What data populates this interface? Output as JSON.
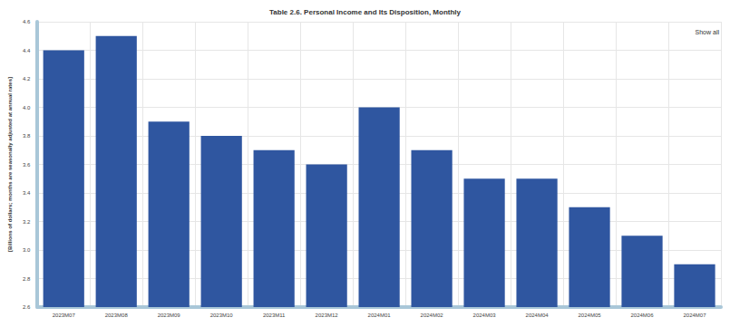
{
  "chart_data": {
    "type": "bar",
    "title": "Table 2.6. Personal Income and Its Disposition, Monthly",
    "y_label": "[Billions of dollars; months are seasonally adjusted at annual rates]",
    "annotations": [
      "Show all"
    ],
    "categories": [
      "2023M07",
      "2023M08",
      "2023M09",
      "2023M10",
      "2023M11",
      "2023M12",
      "2024M01",
      "2024M02",
      "2024M03",
      "2024M04",
      "2024M05",
      "2024M06",
      "2024M07"
    ],
    "values": [
      4.4,
      4.5,
      3.9,
      3.8,
      3.7,
      3.6,
      4.0,
      3.7,
      3.5,
      3.5,
      3.3,
      3.1,
      2.9
    ],
    "color": "#2f56a0",
    "ylim": [
      2.6,
      4.6
    ],
    "yticks": [
      2.6,
      2.8,
      {
        "value": 3,
        "label": "3.0"
      },
      3.2,
      3.4,
      3.6,
      3.8,
      {
        "value": 4,
        "label": "4.0"
      },
      4.2,
      4.4,
      4.6
    ],
    "grid": true
  }
}
